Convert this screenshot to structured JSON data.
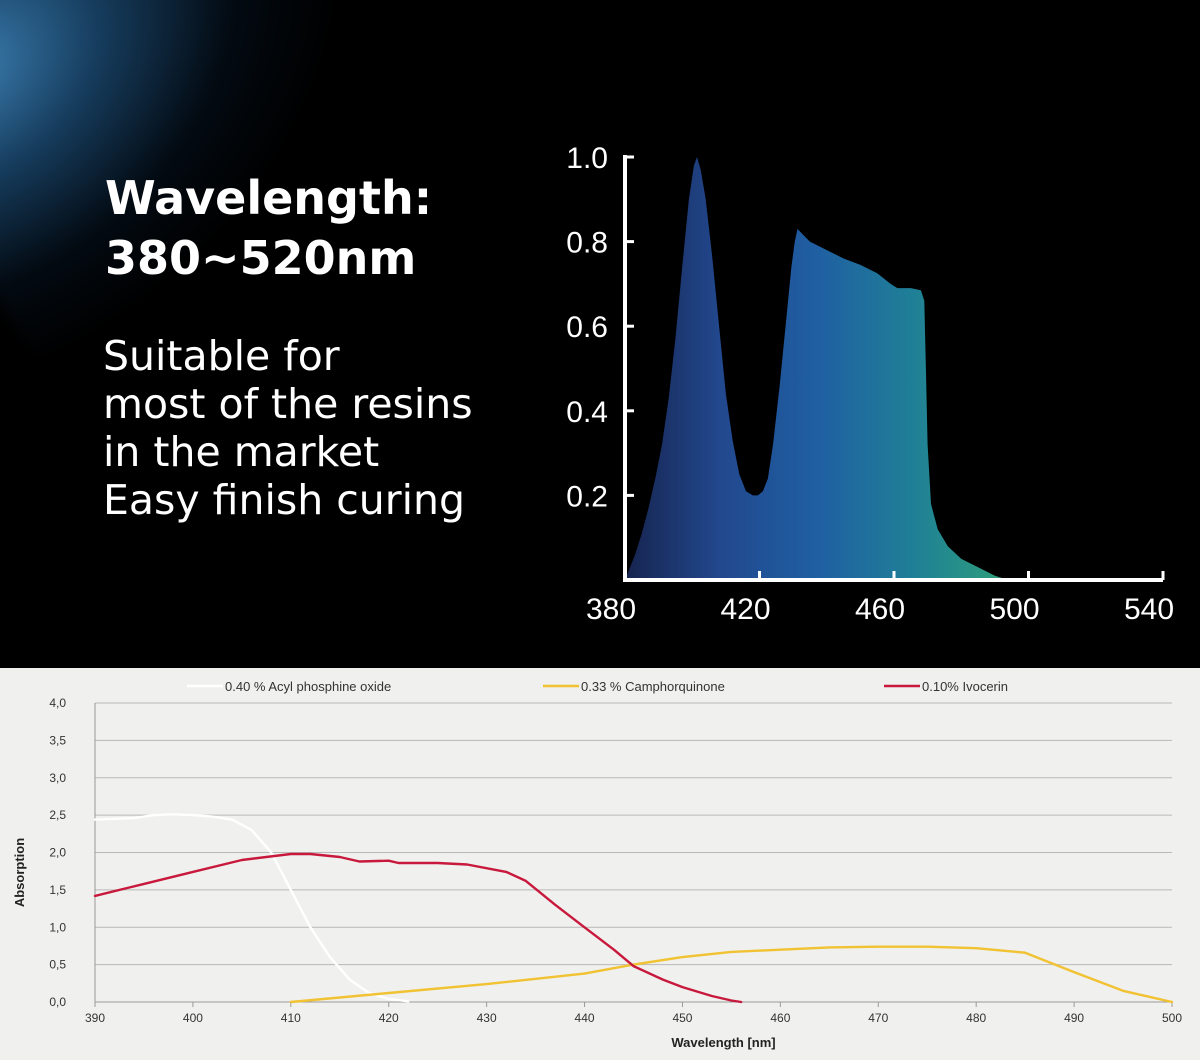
{
  "headline": {
    "line1": "Wavelength:",
    "line2": "380~520nm"
  },
  "features": [
    "Suitable for",
    "most of the resins",
    "in the market",
    "Easy finish curing"
  ],
  "chart_data": [
    {
      "type": "area",
      "title": "",
      "xlabel": "",
      "ylabel": "",
      "xlim": [
        380,
        540
      ],
      "ylim": [
        0,
        1.0
      ],
      "x_ticks": [
        380,
        420,
        460,
        500,
        540
      ],
      "y_ticks": [
        0.2,
        0.4,
        0.6,
        0.8,
        1.0
      ],
      "x_tick_labels": [
        "380",
        "420",
        "460",
        "500",
        "540"
      ],
      "y_tick_labels": [
        "0.2",
        "0.4",
        "0.6",
        "0.8",
        "1.0"
      ],
      "colors": [
        "#16244f",
        "#22488e",
        "#1f5fa2",
        "#1f7f97",
        "#2ea07a"
      ],
      "series": [
        {
          "values": [
            [
              380.0,
              0.0
            ],
            [
              381.0,
              0.02
            ],
            [
              383.0,
              0.06
            ],
            [
              385.0,
              0.11
            ],
            [
              387.0,
              0.17
            ],
            [
              389.0,
              0.24
            ],
            [
              391.0,
              0.32
            ],
            [
              393.0,
              0.43
            ],
            [
              395.0,
              0.57
            ],
            [
              397.0,
              0.74
            ],
            [
              399.0,
              0.9
            ],
            [
              400.5,
              0.98
            ],
            [
              401.4,
              1.0
            ],
            [
              402.5,
              0.97
            ],
            [
              404.0,
              0.9
            ],
            [
              406.0,
              0.76
            ],
            [
              408.0,
              0.6
            ],
            [
              410.0,
              0.44
            ],
            [
              412.0,
              0.33
            ],
            [
              414.0,
              0.25
            ],
            [
              416.0,
              0.21
            ],
            [
              418.0,
              0.2
            ],
            [
              419.5,
              0.2
            ],
            [
              421.0,
              0.21
            ],
            [
              422.5,
              0.24
            ],
            [
              424.0,
              0.32
            ],
            [
              426.0,
              0.46
            ],
            [
              428.0,
              0.62
            ],
            [
              429.5,
              0.74
            ],
            [
              430.5,
              0.8
            ],
            [
              431.3,
              0.83
            ],
            [
              432.5,
              0.82
            ],
            [
              435.0,
              0.8
            ],
            [
              440.0,
              0.78
            ],
            [
              445.0,
              0.76
            ],
            [
              450.0,
              0.745
            ],
            [
              455.0,
              0.725
            ],
            [
              459.0,
              0.7
            ],
            [
              461.0,
              0.69
            ],
            [
              465.0,
              0.69
            ],
            [
              468.0,
              0.685
            ],
            [
              469.0,
              0.66
            ],
            [
              469.5,
              0.5
            ],
            [
              470.0,
              0.32
            ],
            [
              471.0,
              0.18
            ],
            [
              473.0,
              0.12
            ],
            [
              476.0,
              0.08
            ],
            [
              480.0,
              0.05
            ],
            [
              485.0,
              0.03
            ],
            [
              490.0,
              0.01
            ],
            [
              494.0,
              0.0
            ]
          ]
        }
      ]
    },
    {
      "type": "line",
      "title": "",
      "xlabel": "Wavelength  [nm]",
      "ylabel": "Absorption",
      "xlim": [
        390,
        500
      ],
      "ylim": [
        0,
        4
      ],
      "grid": true,
      "legend_position": "top",
      "x_ticks": [
        390,
        400,
        410,
        420,
        430,
        440,
        450,
        460,
        470,
        480,
        490,
        500
      ],
      "y_ticks": [
        0,
        0.5,
        1,
        1.5,
        2,
        2.5,
        3,
        3.5,
        4
      ],
      "x_tick_labels": [
        "390",
        "400",
        "410",
        "420",
        "430",
        "440",
        "450",
        "460",
        "470",
        "480",
        "490",
        "500"
      ],
      "y_tick_labels": [
        "0,0",
        "0,5",
        "1,0",
        "1,5",
        "2,0",
        "2,5",
        "3,0",
        "3,5",
        "4,0"
      ],
      "series": [
        {
          "name": "0.40 % Acyl phosphine oxide",
          "color": "#ffffff",
          "values": [
            [
              390,
              2.44
            ],
            [
              394,
              2.46
            ],
            [
              396,
              2.5
            ],
            [
              398,
              2.51
            ],
            [
              400,
              2.5
            ],
            [
              402,
              2.48
            ],
            [
              404,
              2.44
            ],
            [
              406,
              2.3
            ],
            [
              408,
              2.0
            ],
            [
              410,
              1.5
            ],
            [
              412,
              1.0
            ],
            [
              414,
              0.6
            ],
            [
              416,
              0.3
            ],
            [
              418,
              0.12
            ],
            [
              420,
              0.04
            ],
            [
              422,
              0.01
            ]
          ]
        },
        {
          "name": "0.33 % Camphorquinone",
          "color": "#f1c232",
          "values": [
            [
              410,
              0.0
            ],
            [
              420,
              0.12
            ],
            [
              430,
              0.24
            ],
            [
              440,
              0.38
            ],
            [
              445,
              0.5
            ],
            [
              450,
              0.6
            ],
            [
              455,
              0.67
            ],
            [
              460,
              0.7
            ],
            [
              465,
              0.73
            ],
            [
              470,
              0.74
            ],
            [
              475,
              0.74
            ],
            [
              480,
              0.72
            ],
            [
              485,
              0.66
            ],
            [
              490,
              0.4
            ],
            [
              495,
              0.15
            ],
            [
              500,
              0.0
            ]
          ]
        },
        {
          "name": "0.10% Ivocerin",
          "color": "#c8193d",
          "values": [
            [
              390,
              1.42
            ],
            [
              395,
              1.58
            ],
            [
              400,
              1.74
            ],
            [
              405,
              1.9
            ],
            [
              410,
              1.98
            ],
            [
              412,
              1.98
            ],
            [
              415,
              1.94
            ],
            [
              417,
              1.88
            ],
            [
              420,
              1.89
            ],
            [
              421,
              1.86
            ],
            [
              425,
              1.86
            ],
            [
              428,
              1.84
            ],
            [
              432,
              1.74
            ],
            [
              434,
              1.62
            ],
            [
              437,
              1.3
            ],
            [
              440,
              1.0
            ],
            [
              443,
              0.7
            ],
            [
              445,
              0.48
            ],
            [
              448,
              0.3
            ],
            [
              450,
              0.2
            ],
            [
              453,
              0.08
            ],
            [
              455,
              0.02
            ],
            [
              456,
              0.0
            ]
          ]
        }
      ]
    }
  ]
}
